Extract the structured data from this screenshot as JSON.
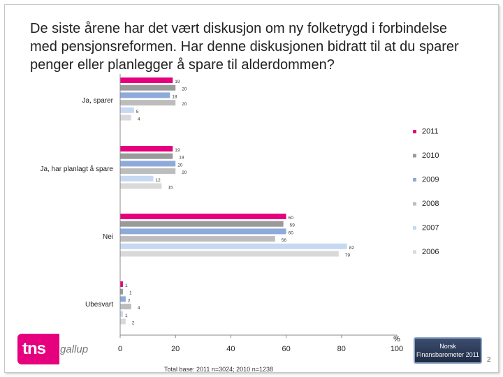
{
  "title": "De siste årene har det vært diskusjon om ny folketrygd i forbindelse med pensjonsreformen. Har denne diskusjonen bidratt til at du sparer penger eller planlegger å spare til alderdommen?",
  "footnote": "Total base: 2011 n=3024; 2010 n=1238",
  "logo_text": "tns",
  "logo_sub": "gallup",
  "badge_line1": "Norsk",
  "badge_line2": "Finansbarometer 2011",
  "page_number": "2",
  "colors": {
    "2011": "#e6007e",
    "2010": "#9a9a9a",
    "2009": "#8eaadb",
    "2008": "#bdbdbd",
    "2007": "#c6d9f1",
    "2006": "#d9d9d9"
  },
  "chart_data": {
    "type": "bar",
    "orientation": "horizontal",
    "categories": [
      "Ja, sparer",
      "Ja, har planlagt å spare",
      "Nei",
      "Ubesvart"
    ],
    "series": [
      {
        "name": "2011",
        "values": [
          19,
          19,
          60,
          1
        ]
      },
      {
        "name": "2010",
        "values": [
          20,
          19,
          59,
          1
        ]
      },
      {
        "name": "2009",
        "values": [
          18,
          20,
          60,
          2
        ]
      },
      {
        "name": "2008",
        "values": [
          20,
          20,
          56,
          4
        ]
      },
      {
        "name": "2007",
        "values": [
          5,
          12,
          82,
          1
        ]
      },
      {
        "name": "2006",
        "values": [
          4,
          15,
          79,
          2
        ]
      }
    ],
    "xlim": [
      0,
      100
    ],
    "xticks": [
      0,
      20,
      40,
      60,
      80,
      100
    ],
    "xlabel": "%",
    "legend_position": "right",
    "grid": false
  }
}
